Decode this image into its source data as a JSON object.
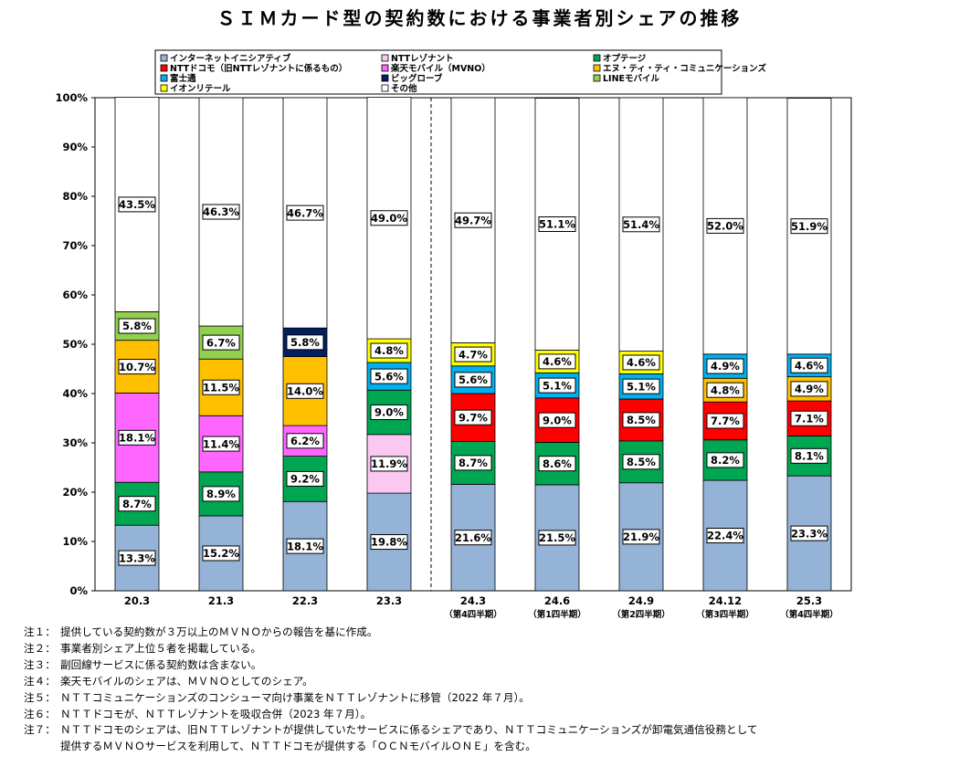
{
  "title": "ＳＩＭカード型の契約数における事業者別シェアの推移",
  "chart_data": {
    "type": "bar",
    "stacked": true,
    "ylim": [
      0,
      100
    ],
    "yticks": [
      "0%",
      "10%",
      "20%",
      "30%",
      "40%",
      "50%",
      "60%",
      "70%",
      "80%",
      "90%",
      "100%"
    ],
    "grid": false,
    "legend_position": "top",
    "categories": [
      "20.3",
      "21.3",
      "22.3",
      "23.3",
      "24.3",
      "24.6",
      "24.9",
      "24.12",
      "25.3"
    ],
    "category_sublabels": [
      "",
      "",
      "",
      "",
      "（第4四半期）",
      "（第1四半期）",
      "（第2四半期）",
      "（第3四半期）",
      "（第4四半期）"
    ],
    "divider_after_category": "23.3",
    "value_format": "{v}%",
    "series": [
      {
        "name": "インターネットイニシアティブ",
        "color": "#95b3d7",
        "values": [
          13.3,
          15.2,
          18.1,
          19.8,
          21.6,
          21.5,
          21.9,
          22.4,
          23.3
        ]
      },
      {
        "name": "NTTレゾナント",
        "color": "#fac8f0",
        "values": [
          null,
          null,
          null,
          11.9,
          null,
          null,
          null,
          null,
          null
        ]
      },
      {
        "name": "オプテージ",
        "color": "#00a651",
        "values": [
          8.7,
          8.9,
          9.2,
          9.0,
          8.7,
          8.6,
          8.5,
          8.2,
          8.1
        ]
      },
      {
        "name": "NTTドコモ（旧NTTレゾナントに係るもの）",
        "color": "#ff0000",
        "values": [
          null,
          null,
          null,
          null,
          9.7,
          9.0,
          8.5,
          7.7,
          7.1
        ]
      },
      {
        "name": "楽天モバイル（MVNO）",
        "color": "#ff66ff",
        "values": [
          18.1,
          11.4,
          6.2,
          null,
          null,
          null,
          null,
          null,
          null
        ]
      },
      {
        "name": "エヌ・ティ・ティ・コミュニケーションズ",
        "color": "#ffc000",
        "values": [
          10.7,
          11.5,
          14.0,
          null,
          null,
          null,
          null,
          4.8,
          4.9
        ]
      },
      {
        "name": "富士通",
        "color": "#00b0f0",
        "values": [
          null,
          null,
          null,
          5.6,
          5.6,
          5.1,
          5.1,
          4.9,
          4.6
        ]
      },
      {
        "name": "ビッグローブ",
        "color": "#002060",
        "values": [
          null,
          null,
          5.8,
          null,
          null,
          null,
          null,
          null,
          null
        ]
      },
      {
        "name": "LINEモバイル",
        "color": "#92d050",
        "values": [
          5.8,
          6.7,
          null,
          null,
          null,
          null,
          null,
          null,
          null
        ]
      },
      {
        "name": "イオンリテール",
        "color": "#ffff00",
        "values": [
          null,
          null,
          null,
          4.8,
          4.7,
          4.6,
          4.6,
          null,
          null
        ]
      },
      {
        "name": "その他",
        "color": "#ffffff",
        "values": [
          43.5,
          46.3,
          46.7,
          49.0,
          49.7,
          51.1,
          51.4,
          52.0,
          51.9
        ]
      }
    ]
  },
  "notes": [
    {
      "label": "注１：",
      "lines": [
        "提供している契約数が３万以上のＭＶＮＯからの報告を基に作成。"
      ]
    },
    {
      "label": "注２：",
      "lines": [
        "事業者別シェア上位５者を掲載している。"
      ]
    },
    {
      "label": "注３：",
      "lines": [
        "副回線サービスに係る契約数は含まない。"
      ]
    },
    {
      "label": "注４：",
      "lines": [
        "楽天モバイルのシェアは、ＭＶＮＯとしてのシェア。"
      ]
    },
    {
      "label": "注５：",
      "lines": [
        "ＮＴＴコミュニケーションズのコンシューマ向け事業をＮＴＴレゾナントに移管（2022 年７月）。"
      ]
    },
    {
      "label": "注６：",
      "lines": [
        "ＮＴＴドコモが、ＮＴＴレゾナントを吸収合併（2023 年７月）。"
      ]
    },
    {
      "label": "注７：",
      "lines": [
        "ＮＴＴドコモのシェアは、旧ＮＴＴレゾナントが提供していたサービスに係るシェアであり、ＮＴＴコミュニケーションズが卸電気通信役務として",
        "提供するＭＶＮＯサービスを利用して、ＮＴＴドコモが提供する「ＯＣＮモバイルＯＮＥ」を含む。"
      ]
    }
  ]
}
